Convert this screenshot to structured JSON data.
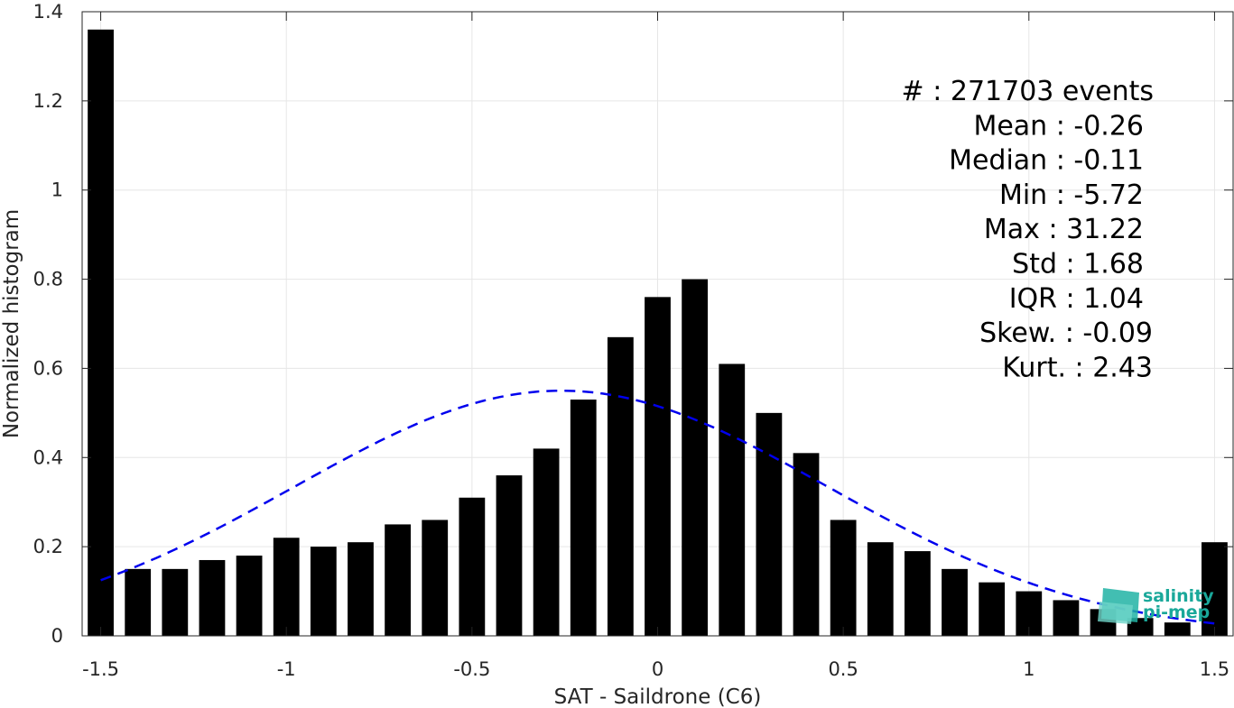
{
  "chart_data": {
    "type": "bar",
    "xlabel": "SAT - Saildrone (C6)",
    "ylabel": "Normalized histogram",
    "xlim": [
      -1.55,
      1.55
    ],
    "ylim": [
      0,
      1.4
    ],
    "xticks": [
      -1.5,
      -1,
      -0.5,
      0,
      0.5,
      1,
      1.5
    ],
    "xtick_labels": [
      "-1.5",
      "-1",
      "-0.5",
      "0",
      "0.5",
      "1",
      "1.5"
    ],
    "yticks": [
      0,
      0.2,
      0.4,
      0.6,
      0.8,
      1,
      1.2,
      1.4
    ],
    "ytick_labels": [
      "0",
      "0.2",
      "0.4",
      "0.6",
      "0.8",
      "1",
      "1.2",
      "1.4"
    ],
    "grid": true,
    "bar_color": "#000000",
    "bar_width": 0.07,
    "x": [
      -1.5,
      -1.4,
      -1.3,
      -1.2,
      -1.1,
      -1.0,
      -0.9,
      -0.8,
      -0.7,
      -0.6,
      -0.5,
      -0.4,
      -0.3,
      -0.2,
      -0.1,
      0.0,
      0.1,
      0.2,
      0.3,
      0.4,
      0.5,
      0.6,
      0.7,
      0.8,
      0.9,
      1.0,
      1.1,
      1.2,
      1.3,
      1.4,
      1.5
    ],
    "values": [
      1.36,
      0.15,
      0.15,
      0.17,
      0.18,
      0.22,
      0.2,
      0.21,
      0.25,
      0.26,
      0.31,
      0.36,
      0.42,
      0.53,
      0.67,
      0.76,
      0.8,
      0.61,
      0.5,
      0.41,
      0.26,
      0.21,
      0.19,
      0.15,
      0.12,
      0.1,
      0.08,
      0.06,
      0.04,
      0.03,
      0.21
    ],
    "fit_curve": {
      "style": "dashed",
      "color": "#0000ee",
      "mean": -0.26,
      "std": 0.72,
      "x_range": [
        -1.5,
        1.5
      ],
      "peak": 0.55
    },
    "stats_lines": [
      "#  : 271703 events",
      "Mean : -0.26",
      "Median : -0.11",
      "Min : -5.72",
      "Max : 31.22",
      "Std : 1.68",
      "IQR : 1.04",
      "Skew. : -0.09",
      "Kurt. : 2.43"
    ]
  },
  "logo": {
    "line1": "salinity",
    "line2": "pi-mep",
    "color": "#1aa89a"
  }
}
